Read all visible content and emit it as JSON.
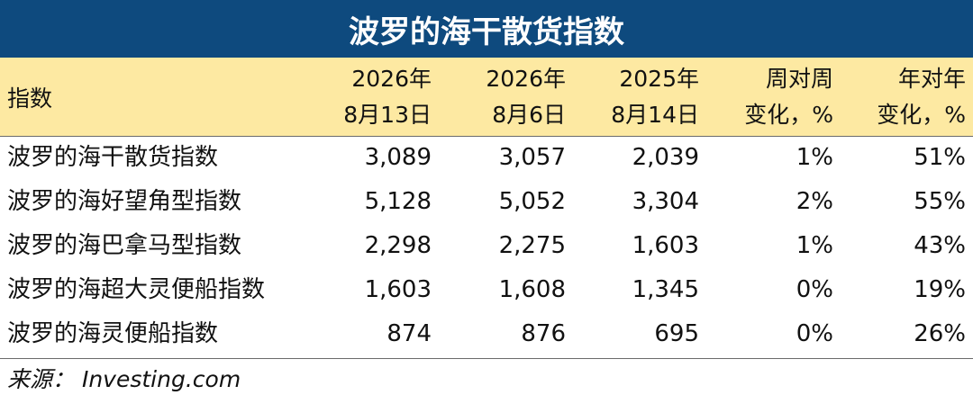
{
  "title": "波罗的海干散货指数",
  "header": {
    "name": "指数",
    "cols": [
      {
        "line1": "2026年",
        "line2": "8月13日"
      },
      {
        "line1": "2026年",
        "line2": "8月6日"
      },
      {
        "line1": "2025年",
        "line2": "8月14日"
      },
      {
        "line1": "周对周",
        "line2": "变化，%"
      },
      {
        "line1": "年对年",
        "line2": "变化，%"
      }
    ]
  },
  "rows": [
    {
      "name": "波罗的海干散货指数",
      "v1": "3,089",
      "v2": "3,057",
      "v3": "2,039",
      "wow": "1%",
      "yoy": "51%"
    },
    {
      "name": "波罗的海好望角型指数",
      "v1": "5,128",
      "v2": "5,052",
      "v3": "3,304",
      "wow": "2%",
      "yoy": "55%"
    },
    {
      "name": "波罗的海巴拿马型指数",
      "v1": "2,298",
      "v2": "2,275",
      "v3": "1,603",
      "wow": "1%",
      "yoy": "43%"
    },
    {
      "name": "波罗的海超大灵便船指数",
      "v1": "1,603",
      "v2": "1,608",
      "v3": "1,345",
      "wow": "0%",
      "yoy": "19%"
    },
    {
      "name": "波罗的海灵便船指数",
      "v1": "874",
      "v2": "876",
      "v3": "695",
      "wow": "0%",
      "yoy": "26%"
    }
  ],
  "source": "来源： Investing.com",
  "colors": {
    "title_bg": "#0e4a7e",
    "header_bg": "#fde9a2"
  }
}
